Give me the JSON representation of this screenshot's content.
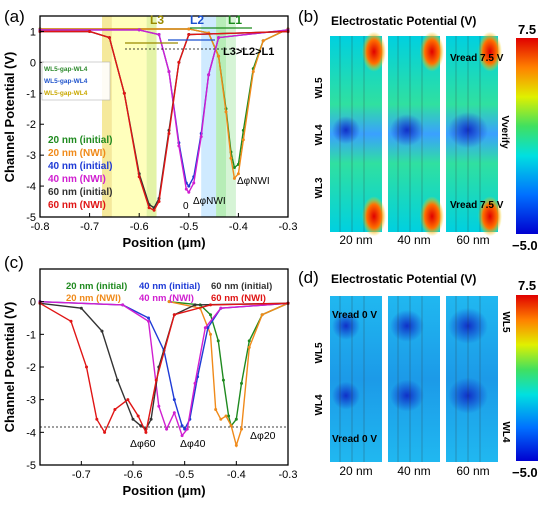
{
  "panels": {
    "a": {
      "tag": "(a)"
    },
    "b": {
      "tag": "(b)"
    },
    "c": {
      "tag": "(c)"
    },
    "d": {
      "tag": "(d)"
    }
  },
  "chart_data": [
    {
      "panel": "a",
      "type": "line",
      "xlabel": "Position (μm)",
      "ylabel": "Channel Potential (V)",
      "xlim": [
        -0.8,
        -0.3
      ],
      "ylim": [
        -5,
        1.5
      ],
      "xticks": [
        "-0.8",
        "-0.7",
        "-0.6",
        "-0.5",
        "-0.4",
        "-0.3"
      ],
      "yticks": [
        "-5",
        "-4",
        "-3",
        "-2",
        "-1",
        "0",
        "1"
      ],
      "bands": [
        {
          "x0": -0.675,
          "x1": -0.655,
          "color": "#f2e27a"
        },
        {
          "x0": -0.655,
          "x1": -0.585,
          "color": "#ffffa6"
        },
        {
          "x0": -0.585,
          "x1": -0.565,
          "color": "#d9ef8a"
        },
        {
          "x0": -0.475,
          "x1": -0.445,
          "color": "#bfe3ff"
        },
        {
          "x0": -0.445,
          "x1": -0.425,
          "color": "#9fe79f"
        },
        {
          "x0": -0.425,
          "x1": -0.405,
          "color": "#c8f0c8"
        }
      ],
      "annotations": {
        "L3": "L3",
        "L2": "L2",
        "L1": "L1",
        "relation": "L3>L2>L1",
        "zero": "0",
        "dphi_nwi_a": "ΔφNWI",
        "dphi_nwi_b": "ΔφNWI"
      },
      "inner_legend": [
        {
          "label": "WL5-gap-WL4",
          "color": "#2e8b2e"
        },
        {
          "label": "WL5-gap-WL4",
          "color": "#2255cc"
        },
        {
          "label": "WL5-gap-WL4",
          "color": "#c9a800"
        }
      ],
      "series": [
        {
          "name": "20 nm (initial)",
          "color": "#1f8a1f",
          "x": [
            -0.8,
            -0.5,
            -0.46,
            -0.44,
            -0.425,
            -0.415,
            -0.408,
            -0.4,
            -0.39,
            -0.37,
            -0.35,
            -0.3
          ],
          "y": [
            1.08,
            1.08,
            0.95,
            0.2,
            -1.5,
            -2.9,
            -3.4,
            -3.3,
            -2.2,
            -0.2,
            0.7,
            1.08
          ]
        },
        {
          "name": "20 nm (NWI)",
          "color": "#f08a1a",
          "x": [
            -0.8,
            -0.5,
            -0.46,
            -0.44,
            -0.425,
            -0.415,
            -0.408,
            -0.4,
            -0.39,
            -0.37,
            -0.35,
            -0.3
          ],
          "y": [
            1.08,
            1.08,
            0.95,
            0.2,
            -1.6,
            -3.1,
            -3.75,
            -3.6,
            -2.5,
            -0.3,
            0.7,
            1.08
          ]
        },
        {
          "name": "40 nm (initial)",
          "color": "#1f3bd6",
          "x": [
            -0.8,
            -0.6,
            -0.56,
            -0.54,
            -0.52,
            -0.505,
            -0.5,
            -0.49,
            -0.475,
            -0.46,
            -0.44,
            -0.3
          ],
          "y": [
            1.05,
            1.05,
            0.9,
            -0.3,
            -2.6,
            -3.9,
            -4.0,
            -3.7,
            -2.3,
            -0.4,
            0.8,
            1.05
          ]
        },
        {
          "name": "40 nm (NWI)",
          "color": "#d01fd0",
          "x": [
            -0.8,
            -0.6,
            -0.56,
            -0.54,
            -0.52,
            -0.505,
            -0.5,
            -0.49,
            -0.475,
            -0.46,
            -0.44,
            -0.3
          ],
          "y": [
            1.05,
            1.05,
            0.9,
            -0.3,
            -2.7,
            -4.1,
            -4.2,
            -3.9,
            -2.4,
            -0.4,
            0.8,
            1.05
          ]
        },
        {
          "name": "60 nm (initial)",
          "color": "#333333",
          "x": [
            -0.8,
            -0.7,
            -0.66,
            -0.63,
            -0.6,
            -0.58,
            -0.57,
            -0.56,
            -0.54,
            -0.52,
            -0.5,
            -0.3
          ],
          "y": [
            1.0,
            1.0,
            0.8,
            -1.0,
            -3.6,
            -4.6,
            -4.7,
            -4.4,
            -2.2,
            0.0,
            0.9,
            1.0
          ]
        },
        {
          "name": "60 nm (NWI)",
          "color": "#e01515",
          "x": [
            -0.8,
            -0.7,
            -0.66,
            -0.63,
            -0.6,
            -0.58,
            -0.57,
            -0.56,
            -0.54,
            -0.52,
            -0.5,
            -0.3
          ],
          "y": [
            1.0,
            1.0,
            0.8,
            -1.0,
            -3.7,
            -4.7,
            -4.78,
            -4.5,
            -2.3,
            0.0,
            0.9,
            1.0
          ]
        }
      ]
    },
    {
      "panel": "c",
      "type": "line",
      "xlabel": "Position (μm)",
      "ylabel": "Channel Potential (V)",
      "xlim": [
        -0.78,
        -0.3
      ],
      "ylim": [
        -5,
        1
      ],
      "xticks": [
        "-0.7",
        "-0.6",
        "-0.5",
        "-0.4",
        "-0.3"
      ],
      "yticks": [
        "-5",
        "-4",
        "-3",
        "-2",
        "-1",
        "0"
      ],
      "annotations": {
        "d60": "Δφ60",
        "d40": "Δφ40",
        "d20": "Δφ20"
      },
      "series": [
        {
          "name": "20 nm (initial)",
          "color": "#1f8a1f",
          "x": [
            -0.53,
            -0.47,
            -0.45,
            -0.435,
            -0.425,
            -0.415,
            -0.41,
            -0.4,
            -0.39,
            -0.375,
            -0.35,
            -0.3
          ],
          "y": [
            0.0,
            -0.1,
            -0.4,
            -1.2,
            -2.4,
            -3.5,
            -3.8,
            -3.6,
            -2.5,
            -1.2,
            -0.4,
            -0.05
          ]
        },
        {
          "name": "20 nm (NWI)",
          "color": "#f08a1a",
          "x": [
            -0.53,
            -0.47,
            -0.45,
            -0.44,
            -0.43,
            -0.42,
            -0.41,
            -0.4,
            -0.39,
            -0.375,
            -0.35,
            -0.3
          ],
          "y": [
            0.0,
            -0.2,
            -1.0,
            -3.3,
            -3.6,
            -3.5,
            -3.8,
            -4.4,
            -3.9,
            -1.4,
            -0.4,
            -0.05
          ]
        },
        {
          "name": "40 nm (initial)",
          "color": "#1f3bd6",
          "x": [
            -0.78,
            -0.62,
            -0.57,
            -0.54,
            -0.52,
            -0.505,
            -0.5,
            -0.49,
            -0.475,
            -0.455,
            -0.43,
            -0.3
          ],
          "y": [
            0.0,
            -0.1,
            -0.5,
            -1.5,
            -3.0,
            -3.8,
            -3.9,
            -3.6,
            -2.3,
            -0.8,
            -0.2,
            -0.05
          ]
        },
        {
          "name": "40 nm (NWI)",
          "color": "#d01fd0",
          "x": [
            -0.78,
            -0.62,
            -0.57,
            -0.55,
            -0.535,
            -0.52,
            -0.505,
            -0.495,
            -0.48,
            -0.46,
            -0.43,
            -0.3
          ],
          "y": [
            0.0,
            -0.1,
            -0.6,
            -3.2,
            -3.9,
            -3.4,
            -4.1,
            -3.9,
            -2.5,
            -0.8,
            -0.2,
            -0.05
          ]
        },
        {
          "name": "60 nm (initial)",
          "color": "#333333",
          "x": [
            -0.78,
            -0.7,
            -0.66,
            -0.63,
            -0.6,
            -0.585,
            -0.575,
            -0.565,
            -0.55,
            -0.52,
            -0.48,
            -0.3
          ],
          "y": [
            -0.05,
            -0.2,
            -0.9,
            -2.4,
            -3.6,
            -3.8,
            -3.9,
            -3.6,
            -2.0,
            -0.4,
            -0.1,
            -0.05
          ]
        },
        {
          "name": "60 nm (NWI)",
          "color": "#e01515",
          "x": [
            -0.78,
            -0.72,
            -0.69,
            -0.67,
            -0.655,
            -0.635,
            -0.61,
            -0.59,
            -0.575,
            -0.555,
            -0.52,
            -0.45,
            -0.3
          ],
          "y": [
            -0.05,
            -0.6,
            -2.0,
            -3.6,
            -4.0,
            -3.3,
            -3.0,
            -3.5,
            -4.0,
            -2.4,
            -0.4,
            -0.1,
            -0.05
          ]
        }
      ]
    }
  ],
  "maps_b": {
    "title": "Electrostatic Potential (V)",
    "wl_labels": [
      "WL5",
      "WL4",
      "WL3"
    ],
    "widths": [
      "20 nm",
      "40 nm",
      "60 nm"
    ],
    "vread_top": "Vread 7.5 V",
    "vread_bottom": "Vread 7.5 V",
    "verify": "Vverify",
    "cb_max": "7.5",
    "cb_min": "−5.0"
  },
  "maps_d": {
    "title": "Electrostatic Potential (V)",
    "wl_left": [
      "WL5",
      "WL4"
    ],
    "wl_right": [
      "WL5",
      "WL4"
    ],
    "widths": [
      "20 nm",
      "40 nm",
      "60 nm"
    ],
    "vread_top": "Vread 0 V",
    "vread_bottom": "Vread 0 V",
    "cb_max": "7.5",
    "cb_min": "−5.0"
  }
}
